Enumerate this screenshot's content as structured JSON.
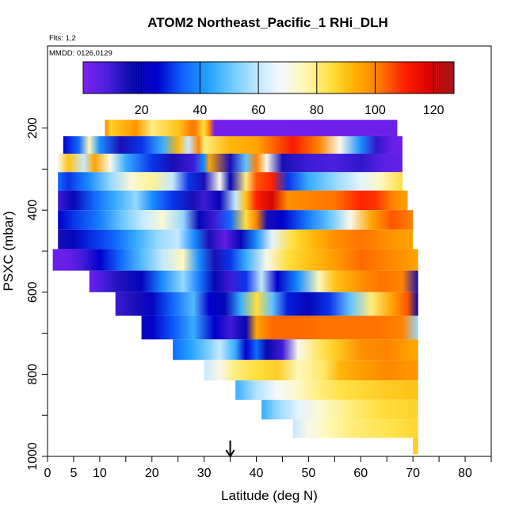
{
  "chart_data": {
    "type": "heatmap",
    "title": "ATOM2 Northeast_Pacific_1 RHi_DLH",
    "flights_label": "Flts: 1,2",
    "dates_label": "MMDD: 0126,0129",
    "xlabel": "Latitude (deg N)",
    "ylabel": "PSXC (mbar)",
    "xlim": [
      0,
      85
    ],
    "ylim": [
      1000,
      0
    ],
    "x_ticks": [
      0,
      5,
      10,
      20,
      30,
      40,
      50,
      60,
      70,
      80
    ],
    "y_ticks": [
      200,
      400,
      600,
      800,
      1000
    ],
    "colorbar": {
      "range": [
        0,
        127
      ],
      "ticks": [
        20,
        40,
        60,
        80,
        100,
        120
      ],
      "colors": [
        "#7f1fef",
        "#4a1fe0",
        "#0a0aa8",
        "#0000cd",
        "#1060ff",
        "#1ea0ff",
        "#6cc8ff",
        "#bfe6ff",
        "#f5f9ff",
        "#fff7b0",
        "#ffe040",
        "#ffb000",
        "#ff7800",
        "#ff2000",
        "#dc0000",
        "#a01818"
      ]
    },
    "arrow_latitude": 35,
    "layers": [
      {
        "y": 200,
        "x": [
          11,
          67
        ],
        "z": [
          [
            11,
            100
          ],
          [
            12,
            88
          ],
          [
            17,
            97
          ],
          [
            20,
            80
          ],
          [
            25,
            90
          ],
          [
            28,
            102
          ],
          [
            30,
            85
          ],
          [
            31,
            100
          ],
          [
            32,
            2
          ],
          [
            40,
            2
          ],
          [
            67,
            3
          ]
        ]
      },
      {
        "y": 240,
        "x": [
          3,
          68
        ],
        "z": [
          [
            3,
            25
          ],
          [
            6,
            35
          ],
          [
            8,
            75
          ],
          [
            10,
            40
          ],
          [
            14,
            15
          ],
          [
            18,
            30
          ],
          [
            22,
            45
          ],
          [
            25,
            92
          ],
          [
            27,
            60
          ],
          [
            29,
            100
          ],
          [
            30,
            80
          ],
          [
            35,
            92
          ],
          [
            40,
            95
          ],
          [
            43,
            103
          ],
          [
            47,
            112
          ],
          [
            52,
            100
          ],
          [
            56,
            70
          ],
          [
            60,
            40
          ],
          [
            63,
            12
          ],
          [
            66,
            4
          ],
          [
            68,
            3
          ]
        ]
      },
      {
        "y": 285,
        "x": [
          2,
          68
        ],
        "z": [
          [
            2,
            70
          ],
          [
            4,
            90
          ],
          [
            7,
            60
          ],
          [
            9,
            95
          ],
          [
            12,
            70
          ],
          [
            15,
            45
          ],
          [
            20,
            30
          ],
          [
            24,
            15
          ],
          [
            28,
            10
          ],
          [
            30,
            40
          ],
          [
            31,
            95
          ],
          [
            35,
            15
          ],
          [
            38,
            50
          ],
          [
            40,
            100
          ],
          [
            42,
            70
          ],
          [
            45,
            15
          ],
          [
            50,
            10
          ],
          [
            55,
            8
          ],
          [
            60,
            12
          ],
          [
            64,
            6
          ],
          [
            68,
            4
          ]
        ]
      },
      {
        "y": 330,
        "x": [
          2,
          68
        ],
        "z": [
          [
            2,
            35
          ],
          [
            4,
            30
          ],
          [
            8,
            40
          ],
          [
            12,
            55
          ],
          [
            16,
            72
          ],
          [
            20,
            78
          ],
          [
            24,
            60
          ],
          [
            27,
            30
          ],
          [
            30,
            15
          ],
          [
            33,
            70
          ],
          [
            35,
            20
          ],
          [
            38,
            80
          ],
          [
            40,
            105
          ],
          [
            43,
            110
          ],
          [
            46,
            30
          ],
          [
            50,
            45
          ],
          [
            55,
            55
          ],
          [
            60,
            65
          ],
          [
            64,
            75
          ],
          [
            68,
            85
          ]
        ]
      },
      {
        "y": 375,
        "x": [
          2,
          69
        ],
        "z": [
          [
            2,
            10
          ],
          [
            5,
            20
          ],
          [
            9,
            35
          ],
          [
            13,
            45
          ],
          [
            17,
            55
          ],
          [
            20,
            40
          ],
          [
            24,
            30
          ],
          [
            28,
            15
          ],
          [
            30,
            10
          ],
          [
            33,
            20
          ],
          [
            36,
            60
          ],
          [
            38,
            90
          ],
          [
            40,
            110
          ],
          [
            43,
            120
          ],
          [
            46,
            98
          ],
          [
            50,
            100
          ],
          [
            55,
            102
          ],
          [
            60,
            110
          ],
          [
            63,
            108
          ],
          [
            66,
            100
          ],
          [
            69,
            95
          ]
        ]
      },
      {
        "y": 425,
        "x": [
          2,
          70
        ],
        "z": [
          [
            2,
            25
          ],
          [
            5,
            30
          ],
          [
            10,
            38
          ],
          [
            14,
            50
          ],
          [
            18,
            60
          ],
          [
            22,
            72
          ],
          [
            26,
            55
          ],
          [
            29,
            20
          ],
          [
            32,
            10
          ],
          [
            35,
            35
          ],
          [
            38,
            85
          ],
          [
            40,
            100
          ],
          [
            42,
            15
          ],
          [
            45,
            25
          ],
          [
            50,
            38
          ],
          [
            54,
            50
          ],
          [
            58,
            70
          ],
          [
            62,
            95
          ],
          [
            66,
            105
          ],
          [
            70,
            100
          ]
        ]
      },
      {
        "y": 470,
        "x": [
          2,
          70
        ],
        "z": [
          [
            2,
            15
          ],
          [
            5,
            22
          ],
          [
            9,
            30
          ],
          [
            13,
            35
          ],
          [
            17,
            45
          ],
          [
            21,
            55
          ],
          [
            25,
            60
          ],
          [
            28,
            40
          ],
          [
            31,
            15
          ],
          [
            34,
            5
          ],
          [
            37,
            20
          ],
          [
            40,
            40
          ],
          [
            43,
            65
          ],
          [
            47,
            85
          ],
          [
            51,
            92
          ],
          [
            55,
            98
          ],
          [
            60,
            102
          ],
          [
            65,
            98
          ],
          [
            70,
            95
          ]
        ]
      },
      {
        "y": 520,
        "x": [
          1,
          71
        ],
        "z": [
          [
            1,
            3
          ],
          [
            4,
            4
          ],
          [
            7,
            10
          ],
          [
            10,
            25
          ],
          [
            14,
            35
          ],
          [
            18,
            48
          ],
          [
            22,
            60
          ],
          [
            26,
            75
          ],
          [
            29,
            40
          ],
          [
            32,
            15
          ],
          [
            35,
            30
          ],
          [
            38,
            45
          ],
          [
            42,
            70
          ],
          [
            46,
            85
          ],
          [
            50,
            90
          ],
          [
            55,
            96
          ],
          [
            60,
            103
          ],
          [
            65,
            100
          ],
          [
            71,
            95
          ]
        ]
      },
      {
        "y": 575,
        "x": [
          8,
          71
        ],
        "z": [
          [
            8,
            3
          ],
          [
            10,
            8
          ],
          [
            14,
            14
          ],
          [
            18,
            22
          ],
          [
            22,
            40
          ],
          [
            26,
            55
          ],
          [
            29,
            38
          ],
          [
            32,
            20
          ],
          [
            35,
            10
          ],
          [
            38,
            30
          ],
          [
            41,
            60
          ],
          [
            44,
            25
          ],
          [
            48,
            40
          ],
          [
            52,
            75
          ],
          [
            55,
            90
          ],
          [
            60,
            98
          ],
          [
            64,
            102
          ],
          [
            68,
            100
          ],
          [
            71,
            15
          ]
        ]
      },
      {
        "y": 625,
        "x": [
          13,
          71
        ],
        "z": [
          [
            13,
            10
          ],
          [
            16,
            14
          ],
          [
            20,
            22
          ],
          [
            24,
            35
          ],
          [
            28,
            48
          ],
          [
            31,
            25
          ],
          [
            34,
            20
          ],
          [
            37,
            45
          ],
          [
            40,
            85
          ],
          [
            43,
            50
          ],
          [
            46,
            28
          ],
          [
            50,
            20
          ],
          [
            54,
            30
          ],
          [
            58,
            50
          ],
          [
            62,
            80
          ],
          [
            66,
            95
          ],
          [
            69,
            105
          ],
          [
            71,
            20
          ]
        ]
      },
      {
        "y": 690,
        "x": [
          18,
          71
        ],
        "z": [
          [
            18,
            20
          ],
          [
            20,
            24
          ],
          [
            24,
            33
          ],
          [
            28,
            45
          ],
          [
            32,
            25
          ],
          [
            35,
            10
          ],
          [
            38,
            20
          ],
          [
            40,
            95
          ],
          [
            43,
            103
          ],
          [
            48,
            103
          ],
          [
            53,
            102
          ],
          [
            58,
            102
          ],
          [
            63,
            102
          ],
          [
            68,
            100
          ],
          [
            71,
            55
          ]
        ]
      },
      {
        "y": 740,
        "x": [
          24,
          71
        ],
        "z": [
          [
            24,
            35
          ],
          [
            27,
            42
          ],
          [
            30,
            50
          ],
          [
            33,
            60
          ],
          [
            36,
            45
          ],
          [
            38,
            25
          ],
          [
            40,
            35
          ],
          [
            42,
            18
          ],
          [
            45,
            10
          ],
          [
            48,
            70
          ],
          [
            52,
            82
          ],
          [
            55,
            88
          ],
          [
            60,
            98
          ],
          [
            65,
            100
          ],
          [
            70,
            95
          ]
        ]
      },
      {
        "y": 790,
        "x": [
          30,
          71
        ],
        "z": [
          [
            30,
            60
          ],
          [
            33,
            70
          ],
          [
            36,
            80
          ],
          [
            40,
            85
          ],
          [
            44,
            88
          ],
          [
            48,
            75
          ],
          [
            50,
            78
          ],
          [
            53,
            82
          ],
          [
            56,
            92
          ],
          [
            60,
            96
          ],
          [
            65,
            99
          ],
          [
            70,
            97
          ]
        ]
      },
      {
        "y": 840,
        "x": [
          36,
          71
        ],
        "z": [
          [
            36,
            45
          ],
          [
            40,
            58
          ],
          [
            44,
            68
          ],
          [
            48,
            74
          ],
          [
            52,
            80
          ],
          [
            56,
            84
          ],
          [
            60,
            86
          ],
          [
            64,
            88
          ],
          [
            70,
            90
          ]
        ]
      },
      {
        "y": 885,
        "x": [
          41,
          71
        ],
        "z": [
          [
            41,
            45
          ],
          [
            44,
            55
          ],
          [
            48,
            65
          ],
          [
            52,
            72
          ],
          [
            56,
            78
          ],
          [
            60,
            82
          ],
          [
            64,
            85
          ],
          [
            70,
            87
          ]
        ]
      },
      {
        "y": 935,
        "x": [
          47,
          71
        ],
        "z": [
          [
            47,
            60
          ],
          [
            50,
            70
          ],
          [
            54,
            76
          ],
          [
            58,
            80
          ],
          [
            62,
            82
          ],
          [
            66,
            84
          ],
          [
            70,
            86
          ]
        ]
      },
      {
        "y": 975,
        "x": [
          70,
          71
        ],
        "z": [
          [
            70,
            88
          ],
          [
            71,
            88
          ]
        ]
      }
    ]
  }
}
